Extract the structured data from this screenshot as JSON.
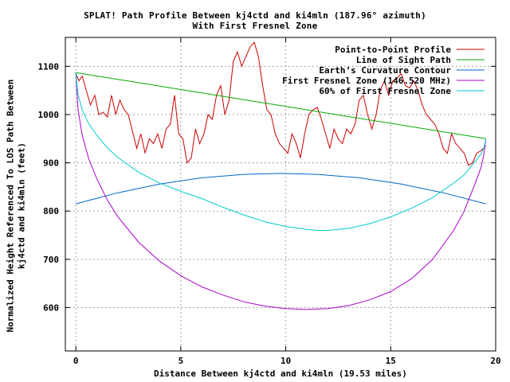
{
  "chart_data": {
    "type": "line",
    "title": "SPLAT! Path Profile Between kj4ctd and ki4mln (187.96° azimuth)",
    "subtitle": "With First Fresnel Zone",
    "xlabel": "Distance Between kj4ctd and ki4mln (19.53 miles)",
    "ylabel_line1": "Normalized Height Referenced To LOS Path Between",
    "ylabel_line2": "kj4ctd and ki4mln (feet)",
    "xlim": [
      -0.5,
      20
    ],
    "ylim": [
      510,
      1160
    ],
    "x_ticks": [
      0,
      5,
      10,
      15,
      20
    ],
    "y_ticks": [
      600,
      700,
      800,
      900,
      1000,
      1100
    ],
    "grid": true,
    "legend_position": "top-right",
    "path_length_miles": 19.53,
    "series": [
      {
        "name": "Point-to-Point Profile",
        "color": "#cc0000",
        "x": [
          0,
          0.15,
          0.3,
          0.5,
          0.7,
          0.9,
          1.1,
          1.3,
          1.5,
          1.7,
          1.9,
          2.1,
          2.3,
          2.5,
          2.7,
          2.9,
          3.1,
          3.3,
          3.5,
          3.7,
          3.9,
          4.1,
          4.3,
          4.5,
          4.7,
          4.9,
          5.1,
          5.3,
          5.5,
          5.7,
          5.9,
          6.1,
          6.3,
          6.5,
          6.7,
          6.9,
          7.1,
          7.3,
          7.5,
          7.7,
          7.9,
          8.1,
          8.3,
          8.5,
          8.7,
          8.9,
          9.1,
          9.3,
          9.5,
          9.7,
          9.9,
          10.1,
          10.3,
          10.5,
          10.7,
          10.9,
          11.1,
          11.3,
          11.5,
          11.7,
          11.9,
          12.1,
          12.3,
          12.5,
          12.7,
          12.9,
          13.1,
          13.3,
          13.5,
          13.7,
          13.9,
          14.1,
          14.3,
          14.5,
          14.7,
          14.9,
          15.1,
          15.3,
          15.5,
          15.7,
          15.9,
          16.1,
          16.3,
          16.5,
          16.7,
          16.9,
          17.1,
          17.3,
          17.5,
          17.7,
          17.9,
          18.1,
          18.3,
          18.5,
          18.7,
          18.9,
          19.1,
          19.3,
          19.53
        ],
        "y": [
          1085,
          1070,
          1080,
          1050,
          1020,
          1040,
          1000,
          1005,
          995,
          1040,
          1000,
          1030,
          1010,
          1000,
          965,
          930,
          960,
          920,
          950,
          940,
          960,
          930,
          970,
          980,
          1040,
          960,
          950,
          900,
          910,
          970,
          940,
          960,
          1000,
          990,
          1040,
          1060,
          1000,
          1030,
          1110,
          1130,
          1100,
          1120,
          1140,
          1150,
          1120,
          1060,
          1010,
          1000,
          960,
          940,
          930,
          920,
          960,
          940,
          910,
          960,
          1000,
          1010,
          1015,
          990,
          960,
          930,
          970,
          950,
          940,
          970,
          960,
          980,
          1030,
          1040,
          1000,
          970,
          1000,
          1050,
          1070,
          1040,
          1070,
          1075,
          1085,
          1060,
          1055,
          1070,
          1050,
          1020,
          1000,
          990,
          980,
          960,
          930,
          920,
          960,
          940,
          930,
          920,
          895,
          900,
          920,
          925,
          935
        ]
      },
      {
        "name": "Line of Sight Path",
        "color": "#00aa00",
        "x": [
          0,
          19.53
        ],
        "y": [
          1087,
          950
        ]
      },
      {
        "name": "Earth’s Curvature Contour",
        "color": "#0066cc",
        "x": [
          0,
          2,
          4,
          6,
          8,
          9.765,
          11.5,
          13.5,
          15.5,
          17.5,
          19.53
        ],
        "y": [
          815,
          838,
          856,
          869,
          876,
          878,
          876,
          869,
          856,
          838,
          815
        ]
      },
      {
        "name": "First Fresnel Zone (146.520 MHz)",
        "color": "#aa00cc",
        "x": [
          0,
          0.1,
          0.3,
          0.6,
          1,
          1.5,
          2,
          3,
          4,
          5,
          6,
          7,
          8,
          9,
          10,
          11,
          11.5,
          12,
          13,
          14,
          15,
          16,
          17,
          18,
          18.5,
          19,
          19.3,
          19.45,
          19.53
        ],
        "y": [
          1087,
          1012,
          958,
          910,
          867,
          823,
          788,
          735,
          696,
          666,
          643,
          626,
          612,
          603,
          598,
          596,
          597,
          598,
          604,
          616,
          633,
          660,
          700,
          760,
          800,
          855,
          890,
          920,
          950
        ]
      },
      {
        "name": "60% of First Fresnel Zone",
        "color": "#00cccc",
        "x": [
          0,
          0.1,
          0.3,
          0.6,
          1,
          1.5,
          2,
          3,
          4,
          5,
          6,
          7,
          8,
          9,
          10,
          11,
          11.5,
          12,
          13,
          14,
          15,
          16,
          17,
          18,
          18.5,
          19,
          19.3,
          19.45,
          19.53
        ],
        "y": [
          1087,
          1042,
          1010,
          982,
          957,
          931,
          911,
          880,
          858,
          841,
          826,
          808,
          792,
          778,
          768,
          762,
          760,
          760,
          764,
          774,
          788,
          806,
          828,
          858,
          875,
          902,
          918,
          932,
          950
        ]
      }
    ]
  }
}
